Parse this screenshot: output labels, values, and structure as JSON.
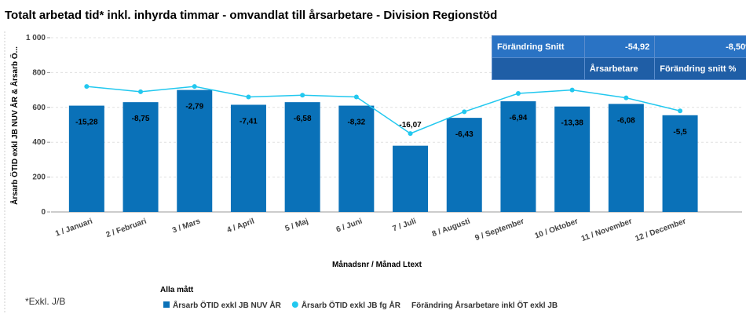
{
  "chart_data": {
    "type": "bar",
    "title": "Totalt arbetad tid* inkl. inhyrda timmar - omvandlat till årsarbetare - Division Regionstöd",
    "x_label": "Månadsnr / Månad Ltext",
    "y_label": "Årsarb ÖTID exkl JB NUV ÅR & Årsarb Ö...",
    "legend_title": "Alla mått",
    "footnote": "*Exkl. J/B",
    "categories": [
      "1 / Januari",
      "2 / Februari",
      "3 / Mars",
      "4 / April",
      "5 / Maj",
      "6 / Juni",
      "7 / Juli",
      "8 / Augusti",
      "9 / September",
      "10 / Oktober",
      "11 / November",
      "12 / December"
    ],
    "series": [
      {
        "name": "Årsarb ÖTID exkl JB NUV ÅR",
        "color": "#0a71b8",
        "values": [
          610,
          630,
          700,
          615,
          630,
          610,
          380,
          540,
          635,
          605,
          620,
          555
        ]
      },
      {
        "name": "Årsarb ÖTID exkl JB fg ÅR",
        "color": "#22c8ef",
        "values": [
          720,
          690,
          720,
          660,
          670,
          660,
          450,
          575,
          680,
          700,
          655,
          580
        ]
      },
      {
        "name": "Förändring Årsarbetare inkl ÖT exkl JB",
        "values": [
          -15.28,
          -8.75,
          -2.79,
          -7.41,
          -6.58,
          -8.32,
          -16.07,
          -6.43,
          -6.94,
          -13.38,
          -6.08,
          -5.5
        ],
        "value_labels": [
          "-15,28",
          "-8,75",
          "-2,79",
          "-7,41",
          "-6,58",
          "-8,32",
          "-16,07",
          "-6,43",
          "-6,94",
          "-13,38",
          "-6,08",
          "-5,5"
        ]
      }
    ],
    "ylim": [
      0,
      1000
    ],
    "yticks": [
      0,
      200,
      400,
      600,
      800,
      {
        "value": 1000,
        "label": "1 000"
      }
    ],
    "grid": true
  },
  "table": {
    "rows": [
      [
        "Förändring Snitt",
        "-54,92",
        "-8,50%"
      ],
      [
        "Årsarbetare",
        "Förändring snitt %"
      ]
    ]
  }
}
